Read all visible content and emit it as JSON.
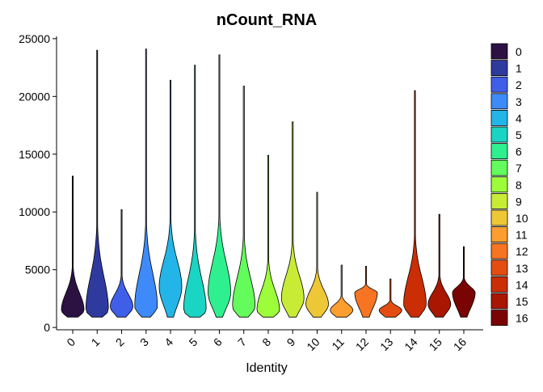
{
  "chart_data": {
    "type": "violin",
    "title": "nCount_RNA",
    "x_label": "Identity",
    "categories": [
      "0",
      "1",
      "2",
      "3",
      "4",
      "5",
      "6",
      "7",
      "8",
      "9",
      "10",
      "11",
      "12",
      "13",
      "14",
      "15",
      "16"
    ],
    "colors": [
      "#2b1243",
      "#2f3a9f",
      "#3f5fe8",
      "#3e8af9",
      "#23b5e8",
      "#1ad4c4",
      "#2ef08f",
      "#64fc5c",
      "#9dfd3a",
      "#c8ec35",
      "#eec737",
      "#fb9e2f",
      "#f77422",
      "#e44d12",
      "#cb2d05",
      "#a91601",
      "#7a0403"
    ],
    "min_values": [
      900,
      900,
      900,
      900,
      900,
      900,
      900,
      900,
      900,
      900,
      900,
      900,
      900,
      900,
      900,
      900,
      900
    ],
    "mode_values": [
      1500,
      1500,
      1800,
      1800,
      3500,
      1500,
      3000,
      1800,
      1500,
      2500,
      2000,
      1500,
      3000,
      1500,
      2000,
      2000,
      3000
    ],
    "max_values": [
      13100,
      24000,
      10200,
      24100,
      21400,
      22700,
      23600,
      20900,
      14900,
      17800,
      11700,
      5400,
      5300,
      4200,
      20500,
      9800,
      7000
    ],
    "ylim": [
      -200,
      25200
    ],
    "yticks": [
      0,
      5000,
      10000,
      15000,
      20000,
      25000
    ],
    "grid": false
  }
}
